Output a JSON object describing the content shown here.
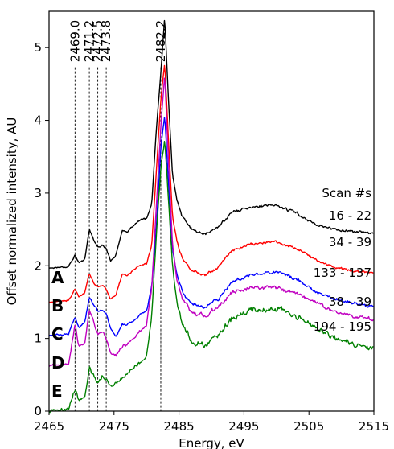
{
  "chart_data": {
    "type": "line",
    "xlabel": "Energy, eV",
    "ylabel": "Offset normalized intensity, AU",
    "xlim": [
      2465,
      2515
    ],
    "ylim": [
      0,
      5.5
    ],
    "xticks": [
      "2465",
      "2475",
      "2485",
      "2495",
      "2505",
      "2515"
    ],
    "yticks": [
      "0",
      "1",
      "2",
      "3",
      "4",
      "5"
    ],
    "reference_lines": [
      {
        "x": 2469.0,
        "label": "2469.0"
      },
      {
        "x": 2471.2,
        "label": "2471.2"
      },
      {
        "x": 2472.5,
        "label": "2472.5"
      },
      {
        "x": 2473.8,
        "label": "2473.8"
      },
      {
        "x": 2482.2,
        "label": "2482.2"
      }
    ],
    "legend_title": "Scan #s",
    "series": [
      {
        "name": "A",
        "scan": "16 - 22",
        "color": "#000000",
        "offset": 1.95,
        "peak": 5.42,
        "noise": 0.025,
        "post_scale": 1.0,
        "points": [
          [
            2465,
            0.02
          ],
          [
            2468,
            0.04
          ],
          [
            2469,
            0.2
          ],
          [
            2469.6,
            0.08
          ],
          [
            2470.5,
            0.15
          ],
          [
            2471.2,
            0.55
          ],
          [
            2471.8,
            0.42
          ],
          [
            2472.5,
            0.3
          ],
          [
            2473.2,
            0.34
          ],
          [
            2473.8,
            0.28
          ],
          [
            2474.5,
            0.12
          ],
          [
            2475.3,
            0.2
          ],
          [
            2476.3,
            0.55
          ],
          [
            2477,
            0.5
          ],
          [
            2478,
            0.6
          ],
          [
            2479,
            0.68
          ],
          [
            2480,
            0.7
          ],
          [
            2480.8,
            0.9
          ],
          [
            2481.5,
            1.9
          ],
          [
            2482.2,
            2.7
          ],
          [
            2482.8,
            3.47
          ],
          [
            2483.4,
            2.3
          ],
          [
            2484,
            1.3
          ],
          [
            2484.7,
            0.95
          ],
          [
            2485.5,
            0.72
          ],
          [
            2487,
            0.55
          ],
          [
            2489,
            0.48
          ],
          [
            2491,
            0.58
          ],
          [
            2493,
            0.78
          ],
          [
            2496,
            0.86
          ],
          [
            2500,
            0.88
          ],
          [
            2503,
            0.78
          ],
          [
            2506,
            0.62
          ],
          [
            2509,
            0.55
          ],
          [
            2512,
            0.52
          ],
          [
            2515,
            0.5
          ]
        ]
      },
      {
        "name": "B",
        "scan": "34 - 39",
        "color": "#ff0000",
        "offset": 1.48,
        "peak": 4.8,
        "noise": 0.025,
        "post_scale": 1.0,
        "points": [
          [
            2465,
            0.02
          ],
          [
            2468,
            0.04
          ],
          [
            2469,
            0.2
          ],
          [
            2469.6,
            0.08
          ],
          [
            2470.5,
            0.15
          ],
          [
            2471.2,
            0.42
          ],
          [
            2471.8,
            0.3
          ],
          [
            2472.5,
            0.22
          ],
          [
            2473.2,
            0.26
          ],
          [
            2473.8,
            0.2
          ],
          [
            2474.5,
            0.06
          ],
          [
            2475.3,
            0.12
          ],
          [
            2476.3,
            0.42
          ],
          [
            2477,
            0.38
          ],
          [
            2478,
            0.46
          ],
          [
            2479,
            0.52
          ],
          [
            2480,
            0.55
          ],
          [
            2480.8,
            0.8
          ],
          [
            2481.5,
            1.8
          ],
          [
            2482.2,
            2.8
          ],
          [
            2482.8,
            3.32
          ],
          [
            2483.4,
            2.2
          ],
          [
            2484,
            1.2
          ],
          [
            2484.7,
            0.85
          ],
          [
            2485.5,
            0.62
          ],
          [
            2487,
            0.45
          ],
          [
            2489,
            0.4
          ],
          [
            2491,
            0.5
          ],
          [
            2493,
            0.72
          ],
          [
            2496,
            0.82
          ],
          [
            2500,
            0.85
          ],
          [
            2503,
            0.76
          ],
          [
            2506,
            0.6
          ],
          [
            2509,
            0.5
          ],
          [
            2512,
            0.45
          ],
          [
            2515,
            0.42
          ]
        ]
      },
      {
        "name": "C",
        "scan": "133 - 137",
        "color": "#0000ff",
        "offset": 1.02,
        "peak": 4.07,
        "noise": 0.03,
        "post_scale": 1.0,
        "points": [
          [
            2465,
            0.02
          ],
          [
            2468,
            0.04
          ],
          [
            2469,
            0.28
          ],
          [
            2469.6,
            0.12
          ],
          [
            2470.5,
            0.2
          ],
          [
            2471.2,
            0.55
          ],
          [
            2471.8,
            0.45
          ],
          [
            2472.5,
            0.35
          ],
          [
            2473.2,
            0.38
          ],
          [
            2473.8,
            0.32
          ],
          [
            2474.5,
            0.12
          ],
          [
            2475.3,
            0.0
          ],
          [
            2476.3,
            0.18
          ],
          [
            2477,
            0.16
          ],
          [
            2478,
            0.22
          ],
          [
            2479,
            0.3
          ],
          [
            2480,
            0.36
          ],
          [
            2480.8,
            0.7
          ],
          [
            2481.5,
            1.5
          ],
          [
            2482.2,
            2.6
          ],
          [
            2482.8,
            3.05
          ],
          [
            2483.4,
            2.1
          ],
          [
            2484,
            1.2
          ],
          [
            2484.7,
            0.85
          ],
          [
            2485.5,
            0.62
          ],
          [
            2487,
            0.45
          ],
          [
            2489,
            0.42
          ],
          [
            2491,
            0.52
          ],
          [
            2493,
            0.75
          ],
          [
            2496,
            0.86
          ],
          [
            2500,
            0.9
          ],
          [
            2503,
            0.8
          ],
          [
            2506,
            0.62
          ],
          [
            2509,
            0.52
          ],
          [
            2512,
            0.46
          ],
          [
            2515,
            0.42
          ]
        ]
      },
      {
        "name": "D",
        "scan": "38 - 39",
        "color": "#c000c0",
        "offset": 0.6,
        "peak": 4.62,
        "noise": 0.04,
        "post_scale": 1.0,
        "points": [
          [
            2465,
            0.02
          ],
          [
            2468,
            0.04
          ],
          [
            2469,
            0.6
          ],
          [
            2469.6,
            0.28
          ],
          [
            2470.5,
            0.32
          ],
          [
            2471.2,
            0.8
          ],
          [
            2471.8,
            0.65
          ],
          [
            2472.5,
            0.45
          ],
          [
            2473.2,
            0.5
          ],
          [
            2473.8,
            0.4
          ],
          [
            2474.5,
            0.2
          ],
          [
            2475.3,
            0.16
          ],
          [
            2476.3,
            0.3
          ],
          [
            2477,
            0.32
          ],
          [
            2478,
            0.4
          ],
          [
            2479,
            0.5
          ],
          [
            2480,
            0.58
          ],
          [
            2480.8,
            1.1
          ],
          [
            2481.5,
            2.2
          ],
          [
            2482.2,
            3.3
          ],
          [
            2482.8,
            4.02
          ],
          [
            2483.4,
            2.8
          ],
          [
            2484,
            1.7
          ],
          [
            2484.7,
            1.2
          ],
          [
            2485.5,
            0.95
          ],
          [
            2487,
            0.75
          ],
          [
            2489,
            0.72
          ],
          [
            2491,
            0.82
          ],
          [
            2493,
            1.02
          ],
          [
            2496,
            1.1
          ],
          [
            2500,
            1.1
          ],
          [
            2503,
            1.02
          ],
          [
            2506,
            0.9
          ],
          [
            2509,
            0.78
          ],
          [
            2512,
            0.7
          ],
          [
            2515,
            0.66
          ]
        ]
      },
      {
        "name": "E",
        "scan": "194 - 195",
        "color": "#008000",
        "offset": 0.0,
        "peak": 3.75,
        "noise": 0.055,
        "post_scale": 1.0,
        "points": [
          [
            2465,
            0.0
          ],
          [
            2468,
            0.04
          ],
          [
            2469,
            0.3
          ],
          [
            2469.6,
            0.15
          ],
          [
            2470.5,
            0.2
          ],
          [
            2471.2,
            0.62
          ],
          [
            2471.8,
            0.5
          ],
          [
            2472.5,
            0.4
          ],
          [
            2473.2,
            0.48
          ],
          [
            2473.8,
            0.44
          ],
          [
            2474.5,
            0.36
          ],
          [
            2475.3,
            0.38
          ],
          [
            2476.3,
            0.45
          ],
          [
            2477,
            0.5
          ],
          [
            2478,
            0.6
          ],
          [
            2479,
            0.68
          ],
          [
            2480,
            0.75
          ],
          [
            2480.8,
            1.3
          ],
          [
            2481.5,
            2.4
          ],
          [
            2482.2,
            3.35
          ],
          [
            2482.8,
            3.75
          ],
          [
            2483.4,
            2.9
          ],
          [
            2484,
            2.0
          ],
          [
            2484.7,
            1.5
          ],
          [
            2485.5,
            1.2
          ],
          [
            2487,
            0.95
          ],
          [
            2489,
            0.9
          ],
          [
            2491,
            1.05
          ],
          [
            2493,
            1.25
          ],
          [
            2496,
            1.4
          ],
          [
            2500,
            1.4
          ],
          [
            2503,
            1.3
          ],
          [
            2506,
            1.15
          ],
          [
            2509,
            1.02
          ],
          [
            2512,
            0.92
          ],
          [
            2515,
            0.86
          ]
        ]
      }
    ]
  }
}
